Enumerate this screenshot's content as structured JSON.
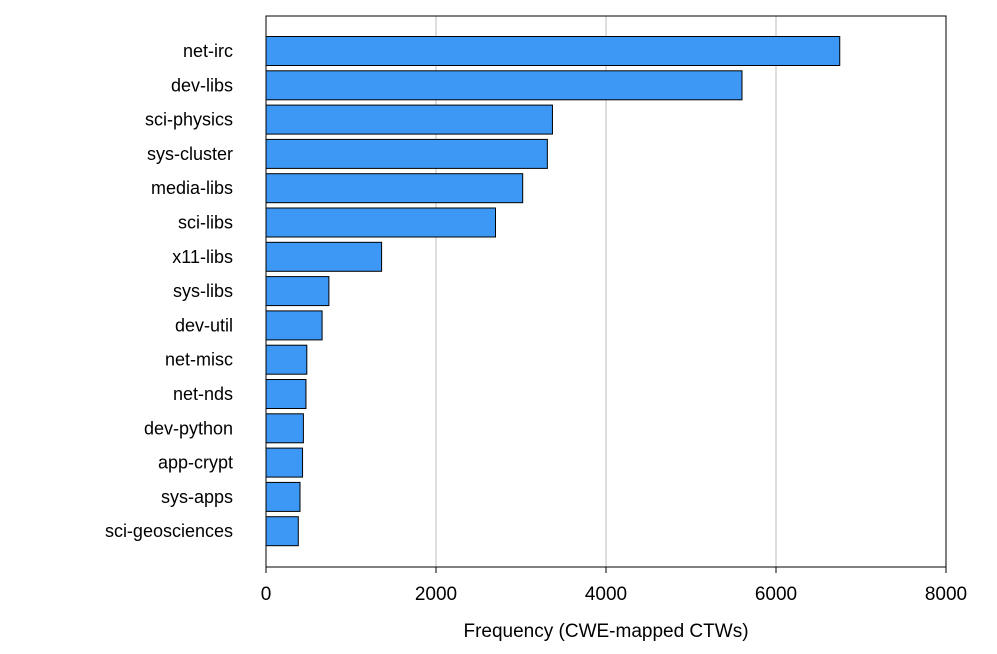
{
  "chart_data": {
    "type": "bar",
    "orientation": "horizontal",
    "title": "",
    "xlabel": "Frequency (CWE-mapped CTWs)",
    "ylabel": "",
    "xlim": [
      0,
      8000
    ],
    "xticks": [
      0,
      2000,
      4000,
      6000,
      8000
    ],
    "grid": "vertical",
    "bar_color": "#3d97f4",
    "categories": [
      "net-irc",
      "dev-libs",
      "sci-physics",
      "sys-cluster",
      "media-libs",
      "sci-libs",
      "x11-libs",
      "sys-libs",
      "dev-util",
      "net-misc",
      "net-nds",
      "dev-python",
      "app-crypt",
      "sys-apps",
      "sci-geosciences"
    ],
    "values": [
      6750,
      5600,
      3370,
      3310,
      3020,
      2700,
      1360,
      740,
      660,
      480,
      470,
      440,
      430,
      400,
      380
    ]
  }
}
